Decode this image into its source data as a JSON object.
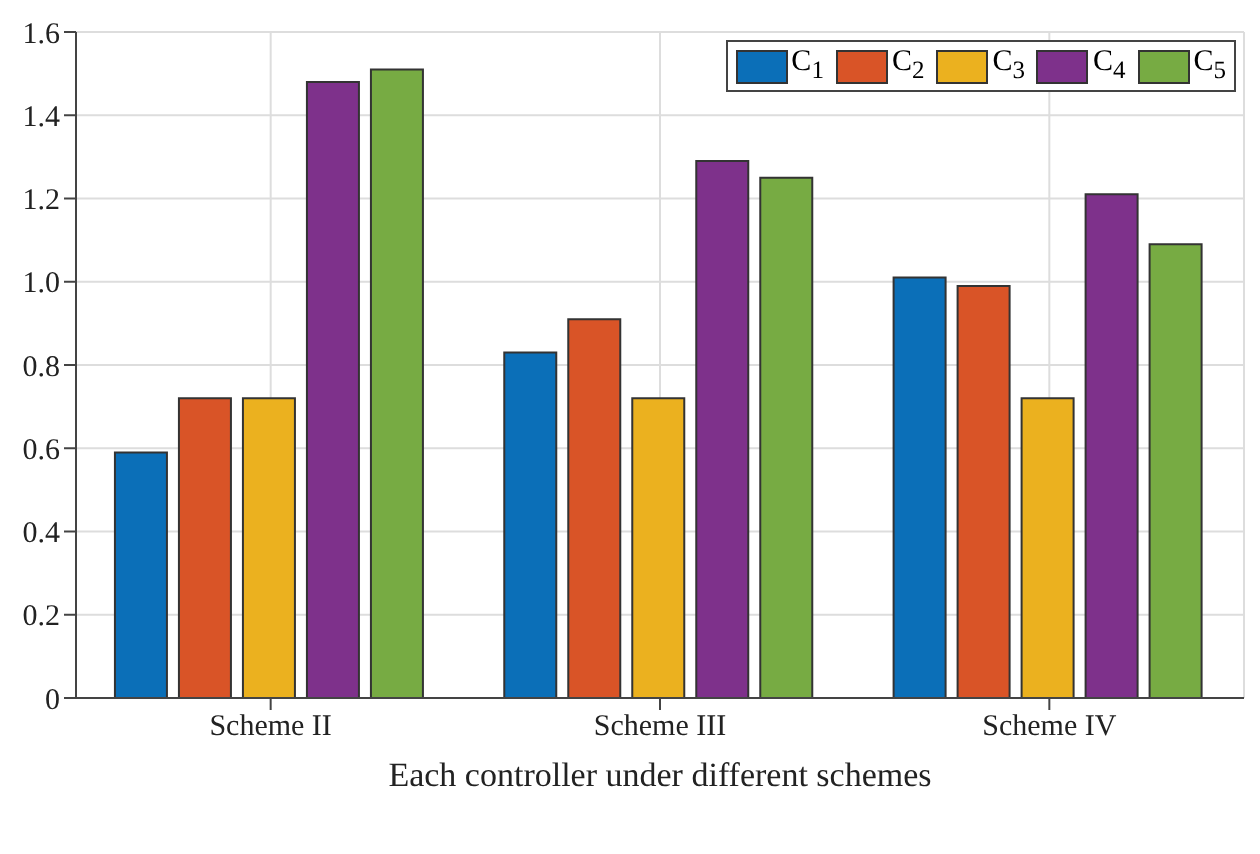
{
  "chart_data": {
    "type": "bar",
    "xlabel": "Each controller under different schemes",
    "categories": [
      "Scheme II",
      "Scheme III",
      "Scheme IV"
    ],
    "series": [
      {
        "name": "C$_{1}$",
        "color": "#0b6fb8",
        "values": [
          0.59,
          0.83,
          1.01
        ]
      },
      {
        "name": "C$_{2}$",
        "color": "#d95427",
        "values": [
          0.72,
          0.91,
          0.99
        ]
      },
      {
        "name": "C$_{3}$",
        "color": "#ebb11f",
        "values": [
          0.72,
          0.72,
          0.72
        ]
      },
      {
        "name": "C$_{4}$",
        "color": "#7e318b",
        "values": [
          1.48,
          1.29,
          1.21
        ]
      },
      {
        "name": "C$_{5}$",
        "color": "#77ab43",
        "values": [
          1.51,
          1.25,
          1.09
        ]
      }
    ],
    "ylim": [
      0,
      1.6
    ],
    "yticks": [
      0,
      0.2,
      0.4,
      0.6,
      0.8,
      {
        "value": 1,
        "label": "1.0"
      },
      1.2,
      1.4,
      1.6
    ],
    "grid": true,
    "legend": "top right"
  }
}
